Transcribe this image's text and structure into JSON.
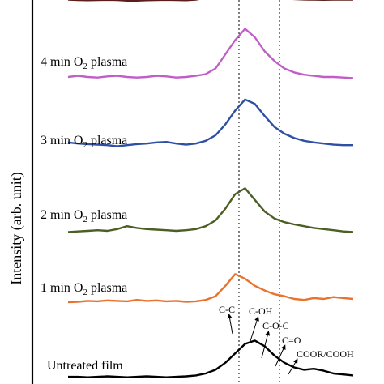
{
  "chart_data": {
    "type": "line",
    "ylabel": "Intensity (arb. unit)",
    "x_index": [
      0,
      1,
      2,
      3,
      4,
      5,
      6,
      7,
      8,
      9,
      10,
      11,
      12,
      13,
      14,
      15,
      16,
      17,
      18,
      19,
      20,
      21,
      22,
      23,
      24,
      25,
      26,
      27,
      28,
      29
    ],
    "series": [
      {
        "name": "Untreated film",
        "color": "#000000",
        "values": [
          0.05,
          0.05,
          0.04,
          0.05,
          0.06,
          0.05,
          0.04,
          0.05,
          0.06,
          0.05,
          0.04,
          0.05,
          0.06,
          0.08,
          0.12,
          0.2,
          0.35,
          0.55,
          0.75,
          0.82,
          0.7,
          0.5,
          0.35,
          0.25,
          0.2,
          0.22,
          0.18,
          0.12,
          0.1,
          0.08
        ]
      },
      {
        "name": "1 min O2 plasma",
        "label_main": "1 min O",
        "label_sub": "2",
        "label_tail": " plasma",
        "color": "#e8732e",
        "values": [
          0.05,
          0.06,
          0.08,
          0.07,
          0.09,
          0.08,
          0.07,
          0.1,
          0.08,
          0.09,
          0.07,
          0.08,
          0.06,
          0.07,
          0.1,
          0.18,
          0.4,
          0.65,
          0.55,
          0.4,
          0.3,
          0.22,
          0.18,
          0.12,
          0.1,
          0.14,
          0.12,
          0.16,
          0.14,
          0.12
        ]
      },
      {
        "name": "2 min O2 plasma",
        "label_main": "2 min O",
        "label_sub": "2",
        "label_tail": " plasma",
        "color": "#4b5e23",
        "values": [
          0.05,
          0.06,
          0.07,
          0.08,
          0.07,
          0.1,
          0.15,
          0.12,
          0.1,
          0.09,
          0.08,
          0.07,
          0.08,
          0.1,
          0.15,
          0.25,
          0.45,
          0.7,
          0.8,
          0.6,
          0.4,
          0.28,
          0.22,
          0.18,
          0.15,
          0.12,
          0.1,
          0.08,
          0.06,
          0.05
        ]
      },
      {
        "name": "3 min O2 plasma",
        "label_main": "3 min O",
        "label_sub": "2",
        "label_tail": " plasma",
        "color": "#2e4fa3",
        "values": [
          0.12,
          0.1,
          0.09,
          0.08,
          0.07,
          0.05,
          0.07,
          0.09,
          0.1,
          0.12,
          0.13,
          0.1,
          0.08,
          0.1,
          0.15,
          0.25,
          0.45,
          0.7,
          0.9,
          0.82,
          0.6,
          0.4,
          0.28,
          0.2,
          0.15,
          0.12,
          0.1,
          0.08,
          0.07,
          0.07
        ]
      },
      {
        "name": "4 min O2 plasma",
        "label_main": "4 min O",
        "label_sub": "2",
        "label_tail": " plasma",
        "color": "#c05ec8",
        "values": [
          0.1,
          0.12,
          0.1,
          0.09,
          0.11,
          0.12,
          0.1,
          0.09,
          0.1,
          0.12,
          0.11,
          0.09,
          0.1,
          0.12,
          0.15,
          0.25,
          0.5,
          0.75,
          0.95,
          0.8,
          0.55,
          0.38,
          0.25,
          0.18,
          0.14,
          0.12,
          0.1,
          0.1,
          0.09,
          0.08
        ]
      },
      {
        "name": "",
        "color": "#5a1f1a",
        "values": [
          0.35,
          0.33,
          0.32,
          0.33,
          0.34,
          0.33,
          0.3,
          0.3,
          0.32,
          0.33,
          0.34,
          0.33,
          0.32,
          0.35,
          0.45,
          0.65,
          0.85,
          1.0,
          0.9,
          0.7,
          0.55,
          0.45,
          0.4,
          0.38,
          0.36,
          0.35,
          0.34,
          0.35,
          0.36,
          0.35
        ]
      }
    ],
    "peak_markers": [
      "C-C",
      "C-OH",
      "C-O-C",
      "C=O",
      "COOR/COOH"
    ],
    "dotted_reference_lines": 2,
    "grid": false,
    "legend": "labels next to each trace"
  }
}
